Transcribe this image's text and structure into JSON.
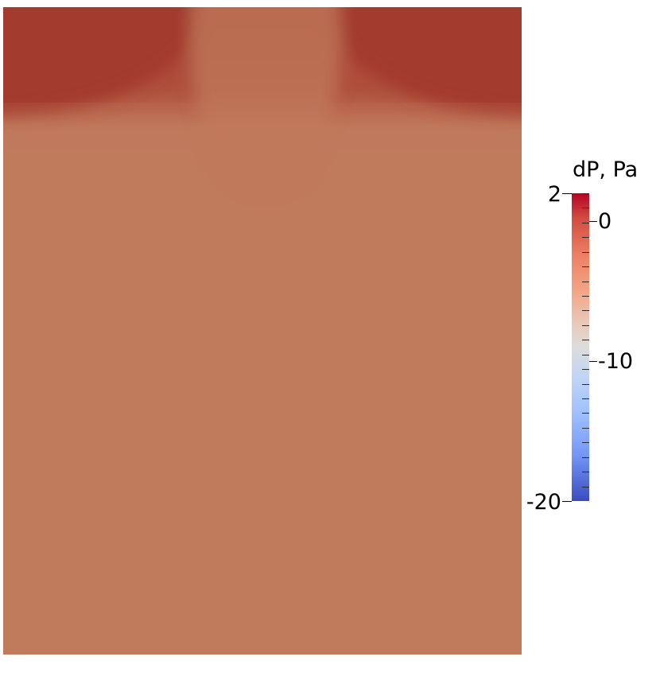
{
  "colorbar": {
    "title": "dP, Pa",
    "range": [
      -20,
      2
    ],
    "colormap": "cool-to-warm",
    "colormap_stops": [
      "#3b4cc0",
      "#8db0fe",
      "#dddddd",
      "#f49a7b",
      "#b40426"
    ],
    "labels": {
      "max": "2",
      "zero": "0",
      "mid": "-10",
      "min": "-20"
    },
    "major_tick_values": [
      2,
      0,
      -10,
      -20
    ],
    "minor_tick_count": 21
  },
  "field": {
    "description_colors": {
      "base": "#c07a5c",
      "high": "#a33a2e",
      "mid": "#c2805f"
    }
  }
}
